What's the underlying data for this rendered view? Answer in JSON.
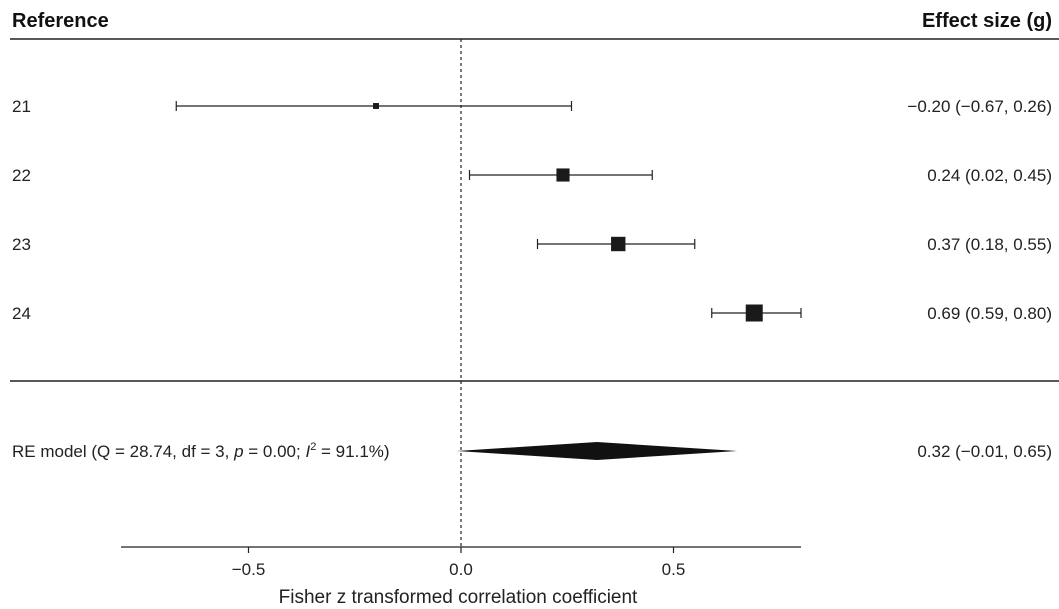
{
  "chart_data": {
    "type": "forest",
    "headers": {
      "left": "Reference",
      "right": "Effect size (g)"
    },
    "studies": [
      {
        "label": "21",
        "estimate": -0.2,
        "lower": -0.67,
        "upper": 0.26,
        "text": "−0.20 (−0.67, 0.26)",
        "weight": 0.15
      },
      {
        "label": "22",
        "estimate": 0.24,
        "lower": 0.02,
        "upper": 0.45,
        "text": "0.24 (0.02, 0.45)",
        "weight": 0.7
      },
      {
        "label": "23",
        "estimate": 0.37,
        "lower": 0.18,
        "upper": 0.55,
        "text": "0.37 (0.18, 0.55)",
        "weight": 0.8
      },
      {
        "label": "24",
        "estimate": 0.69,
        "lower": 0.59,
        "upper": 0.8,
        "text": "0.69 (0.59, 0.80)",
        "weight": 1.0
      }
    ],
    "summary": {
      "label_prefix": "RE model (Q = 28.74, df = 3, ",
      "label_p": "p",
      "label_mid": " = 0.00; ",
      "label_i": "I",
      "label_sup": "2",
      "label_suffix": " = 91.1%)",
      "estimate": 0.32,
      "lower": -0.01,
      "upper": 0.65,
      "text": "0.32 (−0.01, 0.65)"
    },
    "reference_line": 0,
    "xlim": [
      -0.8,
      0.8
    ],
    "xticks": [
      -0.5,
      0.0,
      0.5
    ],
    "xtick_labels": [
      "−0.5",
      "0.0",
      "0.5"
    ],
    "xlabel": "Fisher z transformed correlation coefficient"
  }
}
